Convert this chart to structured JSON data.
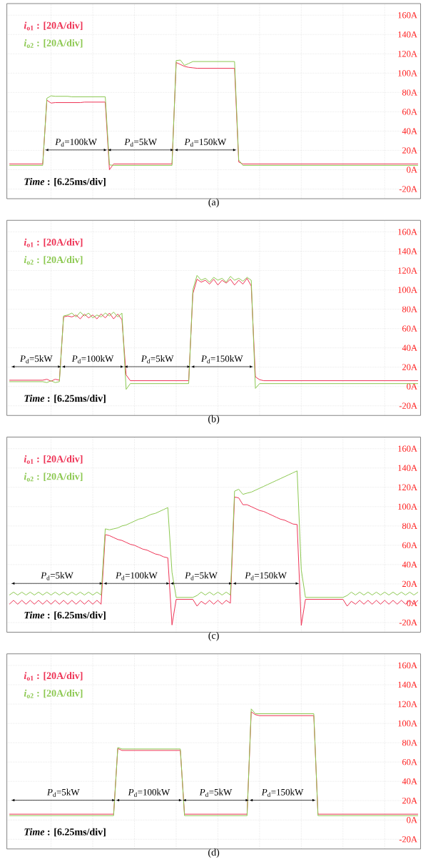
{
  "chart_data": [
    {
      "type": "line",
      "title": "(a)",
      "ylim": [
        -30,
        172
      ],
      "categories": [
        null,
        null,
        null,
        null,
        null,
        null,
        null,
        null,
        null,
        null,
        null,
        null,
        null,
        null,
        null,
        null,
        null,
        null,
        null,
        null,
        null,
        null,
        null,
        null,
        null,
        null,
        null,
        null,
        null,
        null,
        null,
        null,
        null,
        null,
        null,
        null,
        null,
        null,
        null,
        null,
        null,
        null,
        null,
        null,
        null,
        null,
        null,
        null,
        null,
        null,
        null,
        null,
        null,
        null,
        null,
        null,
        null,
        null,
        null,
        null,
        null,
        null,
        null,
        null,
        null,
        null,
        null,
        null,
        null,
        null,
        null,
        null,
        null,
        null,
        null,
        null,
        null,
        null,
        null,
        null,
        null,
        null,
        null,
        null,
        null,
        null,
        null,
        null,
        null,
        null,
        null,
        null,
        null,
        null,
        null,
        null,
        null,
        null,
        null
      ],
      "yticks": [
        {
          "value": -20,
          "label": "-20A"
        },
        {
          "value": 0,
          "label": "0A"
        },
        {
          "value": 20,
          "label": "20A"
        },
        {
          "value": 40,
          "label": "40A"
        },
        {
          "value": 60,
          "label": "60A"
        },
        {
          "value": 80,
          "label": "80A"
        },
        {
          "value": 100,
          "label": "100A"
        },
        {
          "value": 120,
          "label": "120A"
        },
        {
          "value": 140,
          "label": "140A"
        },
        {
          "value": 160,
          "label": "160A"
        }
      ],
      "tick_labels": "y",
      "grid": true,
      "series": [
        {
          "name": "*i*$_{o1}$ : [20A/div]",
          "color": "#ee3355",
          "values": [
            6,
            6,
            6,
            6,
            6,
            6,
            6,
            6,
            6,
            72,
            69,
            69.5,
            69.5,
            69.5,
            69.5,
            69.5,
            69.5,
            69.5,
            70,
            70,
            70,
            70,
            70,
            70,
            0,
            6,
            6,
            6,
            6,
            6,
            6,
            6,
            6,
            6,
            6,
            6,
            6,
            6,
            6,
            6,
            111,
            109,
            107,
            106,
            105.5,
            105,
            105,
            105,
            105,
            105,
            105,
            105,
            105,
            105,
            105,
            8,
            6,
            6,
            6,
            6,
            6,
            6,
            6,
            6,
            6,
            6,
            6,
            6,
            6,
            6,
            6,
            6,
            6,
            6,
            6,
            6,
            6,
            6,
            6,
            6,
            6,
            6,
            6,
            6,
            6,
            6,
            6,
            6,
            6,
            6,
            6,
            6,
            6,
            6,
            6,
            6,
            6,
            6,
            6
          ]
        },
        {
          "name": "*i*$_{o2}$ : [20A/div]",
          "color": "#8cc850",
          "values": [
            4.5,
            4.5,
            4.5,
            4.5,
            4.5,
            4.5,
            4.5,
            4.5,
            4.5,
            74,
            76.5,
            76,
            76,
            76,
            76,
            75.5,
            75.5,
            75.5,
            75.5,
            75.5,
            75.5,
            75.5,
            75.5,
            75.5,
            5,
            4.5,
            4.5,
            4.5,
            4.5,
            4.5,
            4.5,
            4.5,
            4.5,
            4.5,
            4.5,
            4.5,
            4.5,
            4.5,
            4.5,
            4.5,
            113,
            113.5,
            108,
            110,
            112,
            112,
            112,
            112,
            112,
            112,
            112,
            112,
            112,
            112,
            112,
            10,
            4.5,
            4.5,
            4.5,
            4.5,
            4.5,
            4.5,
            4.5,
            4.5,
            4.5,
            4.5,
            4.5,
            4.5,
            4.5,
            4.5,
            4.5,
            4.5,
            4.5,
            4.5,
            4.5,
            4.5,
            4.5,
            4.5,
            4.5,
            4.5,
            4.5,
            4.5,
            4.5,
            4.5,
            4.5,
            4.5,
            4.5,
            4.5,
            4.5,
            4.5,
            4.5,
            4.5,
            4.5,
            4.5,
            4.5,
            4.5,
            4.5,
            4.5,
            4.5
          ]
        }
      ],
      "annotations": [
        "*Time* : [6.25ms/div]",
        "*P*$_{d}$=100kW",
        "*P*$_{d}$=5kW",
        "*P*$_{d}$=150kW"
      ]
    },
    {
      "type": "line",
      "title": "(b)",
      "ylim": [
        -30,
        172
      ],
      "categories": [
        null,
        null,
        null,
        null,
        null,
        null,
        null,
        null,
        null,
        null,
        null,
        null,
        null,
        null,
        null,
        null,
        null,
        null,
        null,
        null,
        null,
        null,
        null,
        null,
        null,
        null,
        null,
        null,
        null,
        null,
        null,
        null,
        null,
        null,
        null,
        null,
        null,
        null,
        null,
        null,
        null,
        null,
        null,
        null,
        null,
        null,
        null,
        null,
        null,
        null,
        null,
        null,
        null,
        null,
        null,
        null,
        null,
        null,
        null,
        null,
        null,
        null,
        null,
        null,
        null,
        null,
        null,
        null,
        null,
        null,
        null,
        null,
        null,
        null,
        null,
        null,
        null,
        null,
        null,
        null,
        null,
        null,
        null,
        null,
        null,
        null,
        null,
        null,
        null,
        null,
        null,
        null,
        null,
        null,
        null,
        null,
        null,
        null,
        null
      ],
      "yticks": [
        {
          "value": -20,
          "label": "-20A"
        },
        {
          "value": 0,
          "label": "0A"
        },
        {
          "value": 20,
          "label": "20A"
        },
        {
          "value": 40,
          "label": "40A"
        },
        {
          "value": 60,
          "label": "60A"
        },
        {
          "value": 80,
          "label": "80A"
        },
        {
          "value": 100,
          "label": "100A"
        },
        {
          "value": 120,
          "label": "120A"
        },
        {
          "value": 140,
          "label": "140A"
        },
        {
          "value": 160,
          "label": "160A"
        }
      ],
      "tick_labels": "y",
      "grid": true,
      "series": [
        {
          "name": "*i*$_{o1}$ : [20A/div]",
          "color": "#ee3355",
          "values": [
            6.5,
            6.5,
            6.5,
            6.5,
            6.5,
            6.5,
            6.5,
            6.5,
            6.5,
            7.5,
            5.5,
            7.5,
            6.5,
            72,
            73,
            72,
            74,
            70,
            75,
            71,
            74,
            70,
            75,
            71,
            76,
            70,
            75,
            69,
            12,
            6,
            6,
            6,
            6,
            6,
            6,
            6,
            6,
            6,
            6,
            6,
            6,
            6,
            6,
            6,
            96,
            111,
            108,
            110,
            106,
            111,
            105,
            110,
            107,
            111,
            105,
            110,
            106,
            112,
            104,
            10,
            7,
            6,
            6,
            6,
            6,
            6,
            6,
            6,
            6,
            6,
            6,
            6,
            6,
            6,
            6,
            6,
            6,
            6,
            6,
            6,
            6,
            6,
            6,
            6,
            6,
            6,
            6,
            6,
            6,
            6,
            6,
            6,
            6,
            6,
            6,
            6,
            6,
            6,
            6
          ]
        },
        {
          "name": "*i*$_{o2}$ : [20A/div]",
          "color": "#8cc850",
          "values": [
            5,
            5,
            5,
            5,
            5,
            5,
            5,
            5,
            5,
            4,
            6,
            4,
            5,
            73,
            74,
            76,
            72,
            77,
            73,
            76,
            71,
            74,
            72,
            76,
            73,
            77,
            72,
            76,
            -3,
            3,
            3,
            3,
            3,
            3,
            3,
            3,
            3,
            3,
            3,
            3,
            3,
            3,
            3,
            3,
            100,
            115,
            110,
            112,
            108,
            113,
            110,
            112,
            108,
            114,
            110,
            112,
            109,
            113,
            110,
            -2,
            3,
            3,
            3,
            3,
            3,
            3,
            3,
            3,
            3,
            3,
            3,
            3,
            3,
            3,
            3,
            3,
            3,
            3,
            3,
            3,
            3,
            3,
            3,
            3,
            3,
            3,
            3,
            3,
            3,
            3,
            3,
            3,
            3,
            3,
            3,
            3,
            3,
            3,
            3
          ]
        }
      ],
      "annotations": [
        "*Time* : [6.25ms/div]",
        "*P*$_{d}$=5kW",
        "*P*$_{d}$=100kW",
        "*P*$_{d}$=5kW",
        "*P*$_{d}$=150kW"
      ]
    },
    {
      "type": "line",
      "title": "(c)",
      "ylim": [
        -30,
        172
      ],
      "categories": [
        null,
        null,
        null,
        null,
        null,
        null,
        null,
        null,
        null,
        null,
        null,
        null,
        null,
        null,
        null,
        null,
        null,
        null,
        null,
        null,
        null,
        null,
        null,
        null,
        null,
        null,
        null,
        null,
        null,
        null,
        null,
        null,
        null,
        null,
        null,
        null,
        null,
        null,
        null,
        null,
        null,
        null,
        null,
        null,
        null,
        null,
        null,
        null,
        null,
        null,
        null,
        null,
        null,
        null,
        null,
        null,
        null,
        null,
        null,
        null,
        null,
        null,
        null,
        null,
        null,
        null,
        null,
        null,
        null,
        null,
        null,
        null,
        null,
        null,
        null,
        null,
        null,
        null,
        null,
        null,
        null,
        null,
        null,
        null,
        null,
        null,
        null,
        null,
        null,
        null,
        null,
        null,
        null,
        null,
        null,
        null,
        null,
        null,
        null
      ],
      "yticks": [
        {
          "value": -20,
          "label": "-20A"
        },
        {
          "value": 0,
          "label": "0A"
        },
        {
          "value": 20,
          "label": "20A"
        },
        {
          "value": 40,
          "label": "40A"
        },
        {
          "value": 60,
          "label": "60A"
        },
        {
          "value": 80,
          "label": "80A"
        },
        {
          "value": 100,
          "label": "100A"
        },
        {
          "value": 120,
          "label": "120A"
        },
        {
          "value": 140,
          "label": "140A"
        },
        {
          "value": 160,
          "label": "160A"
        }
      ],
      "tick_labels": "y",
      "grid": true,
      "series": [
        {
          "name": "*i*$_{o1}$ : [20A/div]",
          "color": "#ee3355",
          "values": [
            -1,
            3,
            -1,
            3,
            -1,
            3,
            -1,
            3,
            -1,
            3,
            -1,
            3,
            -1,
            3,
            -1,
            3,
            -1,
            3,
            -1,
            3,
            -1,
            3,
            -1,
            71,
            70,
            68,
            66,
            65,
            63,
            61,
            60,
            58,
            56,
            55,
            53,
            51,
            50,
            48,
            47,
            -22.5,
            4,
            4,
            4,
            4,
            4,
            -3,
            2,
            -1,
            3,
            -1,
            3,
            -1,
            3,
            0,
            110,
            109,
            102,
            102,
            100,
            98,
            96,
            95,
            93,
            91,
            89,
            87,
            86,
            84,
            82,
            81.5,
            -23,
            4,
            4,
            4,
            4,
            4,
            4,
            4,
            4,
            4,
            4,
            -3,
            2,
            -1,
            3,
            -1,
            3,
            -1,
            3,
            -1,
            3,
            -1,
            3,
            -1,
            3,
            -1,
            3,
            -1,
            3
          ]
        },
        {
          "name": "*i*$_{o2}$ : [20A/div]",
          "color": "#8cc850",
          "values": [
            8.5,
            11.5,
            8.5,
            11.5,
            8.5,
            11.5,
            8.5,
            11.5,
            8.5,
            11.5,
            8.5,
            11.5,
            8.5,
            11.5,
            8.5,
            11.5,
            8.5,
            11.5,
            8.5,
            11.5,
            8.5,
            11.5,
            8.5,
            77,
            76,
            77,
            78,
            80,
            81,
            83,
            85,
            87,
            88,
            90,
            92,
            93,
            95,
            97,
            99,
            32,
            6,
            6,
            6,
            6,
            6,
            8,
            11.5,
            8.5,
            11.5,
            8.5,
            11.5,
            8.5,
            11.5,
            8.5,
            116,
            118,
            112.7,
            114,
            115,
            117,
            119,
            121,
            123,
            125,
            127,
            129,
            131,
            133,
            135,
            137,
            34.5,
            6,
            6,
            6,
            6,
            6,
            6,
            6,
            6,
            6,
            6,
            8,
            11.5,
            8.5,
            11.5,
            8.5,
            11.5,
            8.5,
            11.5,
            8.5,
            11.5,
            8.5,
            11.5,
            8.5,
            11.5,
            8.5,
            11.5,
            8.5,
            11.5
          ]
        }
      ],
      "annotations": [
        "*Time* : [6.25ms/div]",
        "*P*$_{d}$=5kW",
        "*P*$_{d}$=100kW",
        "*P*$_{d}$=5kW",
        "*P*$_{d}$=150kW"
      ]
    },
    {
      "type": "line",
      "title": "(d)",
      "ylim": [
        -30,
        172
      ],
      "categories": [
        null,
        null,
        null,
        null,
        null,
        null,
        null,
        null,
        null,
        null,
        null,
        null,
        null,
        null,
        null,
        null,
        null,
        null,
        null,
        null,
        null,
        null,
        null,
        null,
        null,
        null,
        null,
        null,
        null,
        null,
        null,
        null,
        null,
        null,
        null,
        null,
        null,
        null,
        null,
        null,
        null,
        null,
        null,
        null,
        null,
        null,
        null,
        null,
        null,
        null,
        null,
        null,
        null,
        null,
        null,
        null,
        null,
        null,
        null,
        null,
        null,
        null,
        null,
        null,
        null,
        null,
        null,
        null,
        null,
        null,
        null,
        null,
        null,
        null,
        null,
        null,
        null,
        null,
        null,
        null,
        null,
        null,
        null,
        null,
        null,
        null,
        null,
        null,
        null,
        null,
        null,
        null,
        null,
        null,
        null,
        null,
        null,
        null,
        null
      ],
      "yticks": [
        {
          "value": -20,
          "label": "-20A"
        },
        {
          "value": 0,
          "label": "0A"
        },
        {
          "value": 20,
          "label": "20A"
        },
        {
          "value": 40,
          "label": "40A"
        },
        {
          "value": 60,
          "label": "60A"
        },
        {
          "value": 80,
          "label": "80A"
        },
        {
          "value": 100,
          "label": "100A"
        },
        {
          "value": 120,
          "label": "120A"
        },
        {
          "value": 140,
          "label": "140A"
        },
        {
          "value": 160,
          "label": "160A"
        }
      ],
      "tick_labels": "y",
      "grid": true,
      "series": [
        {
          "name": "*i*$_{o1}$ : [20A/div]",
          "color": "#ee3355",
          "values": [
            6,
            6,
            6,
            6,
            6,
            6,
            6,
            6,
            6,
            6,
            6,
            6,
            6,
            6,
            6,
            6,
            6,
            6,
            6,
            6,
            6,
            6,
            6,
            6,
            6,
            6,
            74,
            72,
            72,
            72,
            72,
            72,
            72,
            72,
            72,
            72,
            72,
            72,
            72,
            72,
            72,
            72,
            6,
            6,
            6,
            6,
            6,
            6,
            6,
            6,
            6,
            6,
            6,
            6,
            6,
            6,
            6,
            6,
            112,
            109,
            108,
            108,
            108,
            108,
            108,
            108,
            108,
            108,
            108,
            108,
            108,
            108,
            108,
            108,
            6,
            6,
            6,
            6,
            6,
            6,
            6,
            6,
            6,
            6,
            6,
            6,
            6,
            6,
            6,
            6,
            6,
            6,
            6,
            6,
            6,
            6,
            6,
            6,
            6
          ]
        },
        {
          "name": "*i*$_{o2}$ : [20A/div]",
          "color": "#8cc850",
          "values": [
            4.5,
            4.5,
            4.5,
            4.5,
            4.5,
            4.5,
            4.5,
            4.5,
            4.5,
            4.5,
            4.5,
            4.5,
            4.5,
            4.5,
            4.5,
            4.5,
            4.5,
            4.5,
            4.5,
            4.5,
            4.5,
            4.5,
            4.5,
            4.5,
            4.5,
            4.5,
            75,
            73.5,
            73.5,
            73.5,
            73.5,
            73.5,
            73.5,
            73.5,
            73.5,
            73.5,
            73.5,
            73.5,
            73.5,
            73.5,
            73.5,
            73.5,
            4.5,
            4.5,
            4.5,
            4.5,
            4.5,
            4.5,
            4.5,
            4.5,
            4.5,
            4.5,
            4.5,
            4.5,
            4.5,
            4.5,
            4.5,
            4.5,
            115,
            110,
            110,
            110,
            110,
            110,
            110,
            110,
            110,
            110,
            110,
            110,
            110,
            110,
            110,
            110,
            4.5,
            4.5,
            4.5,
            4.5,
            4.5,
            4.5,
            4.5,
            4.5,
            4.5,
            4.5,
            4.5,
            4.5,
            4.5,
            4.5,
            4.5,
            4.5,
            4.5,
            4.5,
            4.5,
            4.5,
            4.5,
            4.5,
            4.5,
            4.5,
            4.5
          ]
        }
      ],
      "annotations": [
        "*Time* : [6.25ms/div]",
        "*P*$_{d}$=5kW",
        "*P*$_{d}$=100kW",
        "*P*$_{d}$=5kW",
        "*P*$_{d}$=150kW"
      ]
    }
  ]
}
